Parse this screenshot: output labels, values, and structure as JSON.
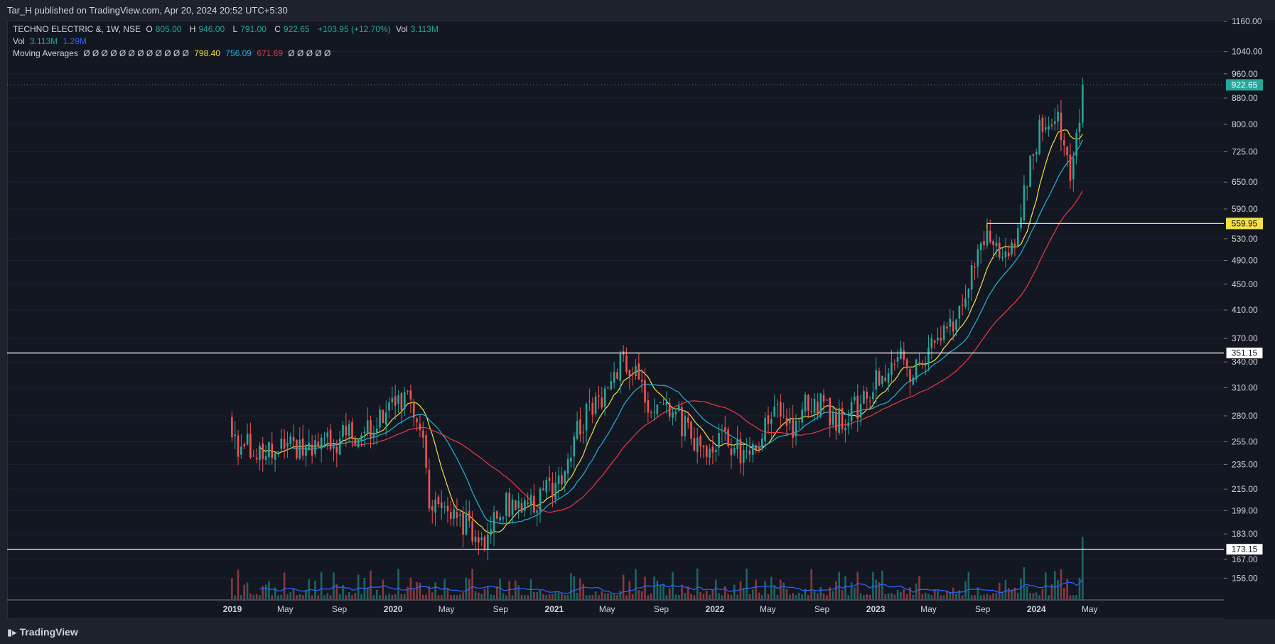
{
  "header": {
    "published": "Tar_H published on TradingView.com, Apr 20, 2024 20:52 UTC+5:30"
  },
  "legend": {
    "symbol": "TECHNO ELECTRIC &, 1W, NSE",
    "o_label": "O",
    "o": "805.00",
    "h_label": "H",
    "h": "946.00",
    "l_label": "L",
    "l": "791.00",
    "c_label": "C",
    "c": "922.65",
    "change": "+103.95 (+12.70%)",
    "vol_label": "Vol",
    "vol": "3.113M",
    "vol_row_label": "Vol",
    "vol_row_a": "3.113M",
    "vol_row_b": "1.29M",
    "ma_label": "Moving Averages",
    "ma_placeholders": "Ø Ø Ø Ø Ø Ø Ø Ø Ø Ø Ø Ø",
    "ma_a": "798.40",
    "ma_b": "756.09",
    "ma_c": "671.69",
    "ma_tail": "Ø Ø Ø Ø Ø"
  },
  "footer": {
    "brand": "TradingView"
  },
  "colors": {
    "up": "#26a69a",
    "down": "#ef5350",
    "ma_fast": "#f5e142",
    "ma_mid": "#22b5d6",
    "ma_slow": "#f23645",
    "vol_ma": "#2962ff"
  },
  "chart_data": {
    "type": "candlestick",
    "y_scale": "log",
    "ylim": [
      145,
      1160
    ],
    "price_ticks": [
      "1160.00",
      "1040.00",
      "960.00",
      "880.00",
      "800.00",
      "725.00",
      "650.00",
      "590.00",
      "530.00",
      "490.00",
      "450.00",
      "410.00",
      "370.00",
      "340.00",
      "310.00",
      "280.00",
      "255.00",
      "235.00",
      "215.00",
      "199.00",
      "183.00",
      "167.00",
      "156.00"
    ],
    "x_ticks": [
      {
        "label": "2019",
        "bold": true
      },
      {
        "label": "May",
        "bold": false
      },
      {
        "label": "Sep",
        "bold": false
      },
      {
        "label": "2020",
        "bold": true
      },
      {
        "label": "May",
        "bold": false
      },
      {
        "label": "Sep",
        "bold": false
      },
      {
        "label": "2021",
        "bold": true
      },
      {
        "label": "May",
        "bold": false
      },
      {
        "label": "Sep",
        "bold": false
      },
      {
        "label": "2022",
        "bold": true
      },
      {
        "label": "May",
        "bold": false
      },
      {
        "label": "Sep",
        "bold": false
      },
      {
        "label": "2023",
        "bold": true
      },
      {
        "label": "May",
        "bold": false
      },
      {
        "label": "Sep",
        "bold": false
      },
      {
        "label": "2024",
        "bold": true
      },
      {
        "label": "May",
        "bold": false
      }
    ],
    "horizontal_levels": [
      {
        "price": 351.15,
        "label": "351.15",
        "style": "white"
      },
      {
        "price": 173.15,
        "label": "173.15",
        "style": "white"
      },
      {
        "price": 559.95,
        "label": "559.95",
        "style": "yellow"
      }
    ],
    "last_price": {
      "price": 922.65,
      "label": "922.65"
    },
    "anchors": [
      [
        "2018-12-31",
        255
      ],
      [
        "2019-02-15",
        252
      ],
      [
        "2019-04-01",
        245
      ],
      [
        "2019-05-15",
        250
      ],
      [
        "2019-07-01",
        245
      ],
      [
        "2019-08-15",
        255
      ],
      [
        "2019-10-01",
        262
      ],
      [
        "2019-11-15",
        270
      ],
      [
        "2019-12-31",
        285
      ],
      [
        "2020-02-10",
        300
      ],
      [
        "2020-03-09",
        255
      ],
      [
        "2020-03-25",
        205
      ],
      [
        "2020-04-20",
        200
      ],
      [
        "2020-05-20",
        195
      ],
      [
        "2020-07-01",
        185
      ],
      [
        "2020-07-27",
        180
      ],
      [
        "2020-08-24",
        200
      ],
      [
        "2020-10-01",
        205
      ],
      [
        "2020-11-15",
        200
      ],
      [
        "2020-12-15",
        215
      ],
      [
        "2021-01-15",
        225
      ],
      [
        "2021-02-15",
        260
      ],
      [
        "2021-03-15",
        280
      ],
      [
        "2021-04-15",
        295
      ],
      [
        "2021-05-10",
        320
      ],
      [
        "2021-06-07",
        340
      ],
      [
        "2021-07-05",
        320
      ],
      [
        "2021-08-02",
        295
      ],
      [
        "2021-09-06",
        290
      ],
      [
        "2021-10-11",
        278
      ],
      [
        "2021-11-15",
        255
      ],
      [
        "2021-12-13",
        240
      ],
      [
        "2022-01-17",
        255
      ],
      [
        "2022-02-21",
        250
      ],
      [
        "2022-03-21",
        240
      ],
      [
        "2022-04-18",
        262
      ],
      [
        "2022-05-23",
        285
      ],
      [
        "2022-06-20",
        268
      ],
      [
        "2022-07-25",
        290
      ],
      [
        "2022-08-29",
        290
      ],
      [
        "2022-10-03",
        278
      ],
      [
        "2022-11-07",
        285
      ],
      [
        "2022-12-12",
        295
      ],
      [
        "2023-01-16",
        330
      ],
      [
        "2023-02-20",
        350
      ],
      [
        "2023-03-20",
        330
      ],
      [
        "2023-04-17",
        340
      ],
      [
        "2023-05-22",
        365
      ],
      [
        "2023-06-19",
        380
      ],
      [
        "2023-07-17",
        430
      ],
      [
        "2023-08-14",
        490
      ],
      [
        "2023-09-11",
        535
      ],
      [
        "2023-10-09",
        515
      ],
      [
        "2023-11-06",
        510
      ],
      [
        "2023-11-27",
        590
      ],
      [
        "2023-12-18",
        700
      ],
      [
        "2024-01-08",
        780
      ],
      [
        "2024-01-29",
        800
      ],
      [
        "2024-02-19",
        810
      ],
      [
        "2024-03-04",
        760
      ],
      [
        "2024-03-18",
        680
      ],
      [
        "2024-04-01",
        780
      ],
      [
        "2024-04-15",
        922.65
      ]
    ]
  }
}
